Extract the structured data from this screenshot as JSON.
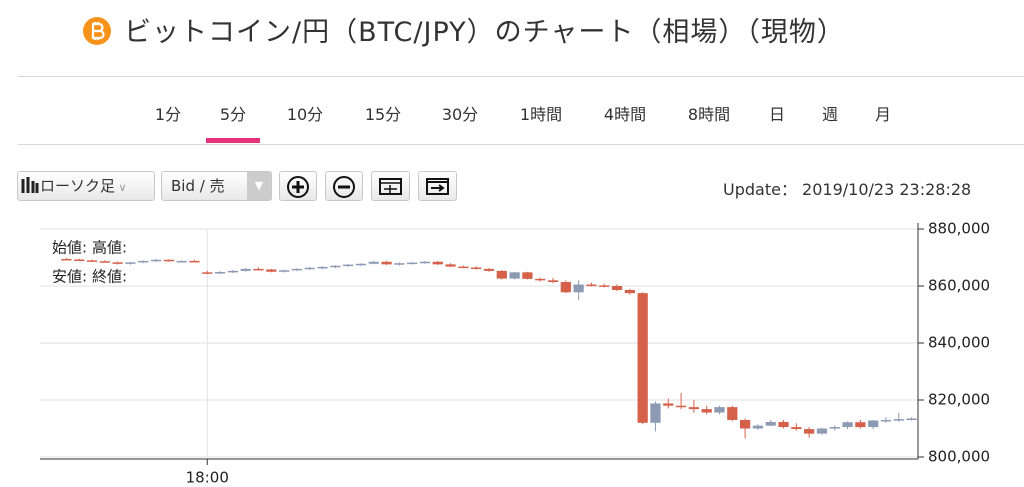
{
  "header": {
    "title": "ビットコイン/円（BTC/JPY）のチャート（相場）（現物）"
  },
  "tabs": {
    "items": [
      "1分",
      "5分",
      "10分",
      "15分",
      "30分",
      "1時間",
      "4時間",
      "8時間",
      "日",
      "週",
      "月"
    ],
    "active": 1,
    "active_color": "#e8327c"
  },
  "toolbar": {
    "chart_type": "ローソク足",
    "price_side": "Bid / 売",
    "update_label": "Update：",
    "update_time": "2019/10/23 23:28:28"
  },
  "chart_data": {
    "type": "candlestick",
    "legend_labels": [
      "始値:",
      "高値:",
      "安値:",
      "終値:"
    ],
    "up_color": "#8d9ab3",
    "down_color": "#d5614b",
    "grid": true,
    "ylim": [
      800000,
      880000
    ],
    "yticks": [
      {
        "value": 800000,
        "label": "800,000"
      },
      {
        "value": 820000,
        "label": "820,000"
      },
      {
        "value": 840000,
        "label": "840,000"
      },
      {
        "value": 860000,
        "label": "860,000"
      },
      {
        "value": 880000,
        "label": "880,000"
      }
    ],
    "categories": [
      null,
      null,
      null,
      null,
      null,
      null,
      null,
      null,
      null,
      null,
      null,
      "18:00",
      null,
      null,
      null,
      null,
      null,
      null,
      null,
      null,
      null,
      null,
      null,
      null,
      null,
      null,
      null,
      null,
      null,
      null,
      null,
      null,
      null,
      null,
      null,
      null,
      null,
      null,
      null,
      null,
      null,
      null,
      null,
      null,
      null,
      null,
      null,
      null,
      null,
      null,
      null,
      null,
      null,
      null,
      null,
      null,
      null,
      null,
      null,
      null,
      null,
      null,
      null,
      null,
      null,
      null,
      null
    ],
    "open": [
      869500,
      869300,
      869000,
      868700,
      868300,
      867800,
      868300,
      868800,
      869200,
      868700,
      868800,
      864800,
      864600,
      864900,
      865300,
      866000,
      865800,
      865000,
      865500,
      866000,
      866400,
      866700,
      867100,
      867500,
      867800,
      868500,
      867600,
      868000,
      868200,
      868500,
      867600,
      866800,
      866500,
      866000,
      865300,
      862600,
      864800,
      862500,
      862000,
      861400,
      857800,
      860500,
      860200,
      860000,
      858600,
      857500,
      812000,
      818800,
      818000,
      817500,
      816800,
      815600,
      817500,
      813000,
      810000,
      811000,
      812300,
      810500,
      809800,
      808200,
      810000,
      810500,
      812200,
      810500,
      812800,
      813000,
      813300
    ],
    "high": [
      869800,
      869600,
      869300,
      869000,
      868600,
      868500,
      869000,
      869500,
      869400,
      869000,
      869200,
      865300,
      865200,
      865600,
      866300,
      866500,
      866000,
      865800,
      866200,
      866700,
      867000,
      867300,
      867700,
      868000,
      868800,
      868900,
      868300,
      868500,
      868800,
      868800,
      868000,
      867200,
      866900,
      866300,
      865600,
      865000,
      865000,
      863000,
      862800,
      862000,
      862000,
      861200,
      860800,
      860500,
      859000,
      857800,
      819500,
      820500,
      822500,
      820000,
      818000,
      818000,
      818000,
      813500,
      811500,
      813000,
      813000,
      811800,
      810500,
      810200,
      811000,
      812500,
      813000,
      813000,
      814000,
      815500,
      814000
    ],
    "low": [
      869000,
      868800,
      868500,
      868200,
      867500,
      867500,
      868000,
      868500,
      868500,
      868300,
      868300,
      864300,
      864200,
      864500,
      865000,
      865400,
      864800,
      864700,
      865200,
      865600,
      865900,
      866300,
      866700,
      867000,
      867600,
      867400,
      867200,
      867600,
      867800,
      867400,
      866600,
      866300,
      865700,
      865000,
      862300,
      862300,
      862300,
      861600,
      861000,
      857500,
      855000,
      859800,
      859500,
      858200,
      857000,
      811500,
      809000,
      817000,
      816800,
      815500,
      815000,
      815000,
      812500,
      806500,
      809500,
      810800,
      810000,
      809300,
      806800,
      807800,
      809200,
      809800,
      810000,
      809800,
      812000,
      812300,
      812800
    ],
    "close": [
      869300,
      869000,
      868700,
      868300,
      867800,
      868300,
      868800,
      869200,
      868700,
      868800,
      868400,
      864600,
      864900,
      865300,
      866000,
      865800,
      865000,
      865500,
      866000,
      866400,
      866700,
      867100,
      867500,
      867800,
      868500,
      867600,
      868000,
      868200,
      868500,
      867600,
      866800,
      866500,
      866000,
      865300,
      862600,
      864800,
      862500,
      862000,
      861400,
      857800,
      860500,
      860200,
      860000,
      858600,
      857500,
      812000,
      818800,
      818000,
      817500,
      816800,
      815600,
      817500,
      813000,
      810000,
      811000,
      812300,
      810500,
      809800,
      808200,
      810000,
      810500,
      812200,
      810500,
      812800,
      813000,
      813300,
      813500
    ]
  }
}
